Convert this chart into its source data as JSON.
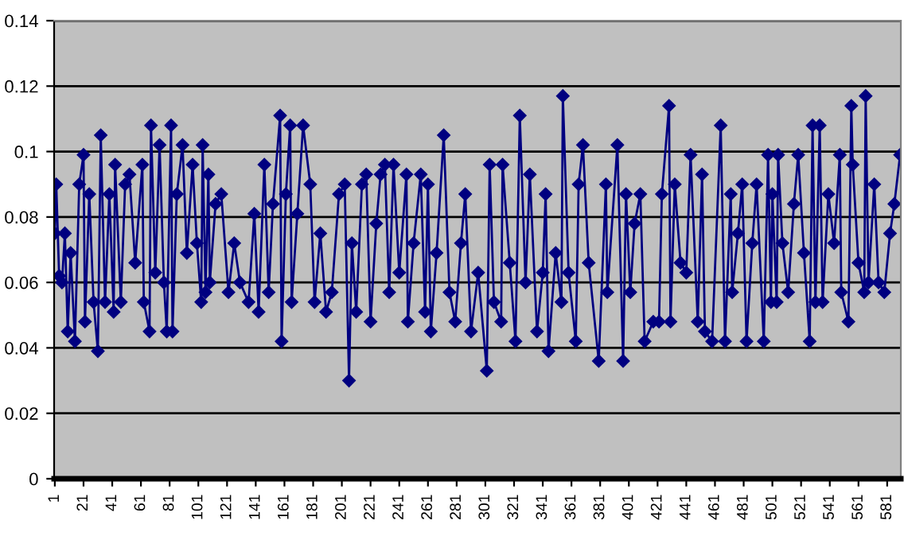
{
  "chart_data": {
    "type": "line",
    "xlim": [
      0.5,
      590.5
    ],
    "xticks": [
      1,
      21,
      41,
      61,
      81,
      101,
      121,
      141,
      161,
      181,
      201,
      221,
      241,
      261,
      281,
      301,
      321,
      341,
      361,
      381,
      401,
      421,
      441,
      461,
      481,
      501,
      521,
      541,
      561,
      581
    ],
    "ylim": [
      0,
      0.14
    ],
    "yticks": [
      0,
      0.02,
      0.04,
      0.06,
      0.08,
      0.1,
      0.12,
      0.14
    ],
    "grid": "y",
    "marker": "diamond",
    "line_style": "solid",
    "series": [
      {
        "color": "#000080",
        "x": [
          1,
          2,
          4,
          6,
          8,
          10,
          12,
          15,
          18,
          21,
          22,
          25,
          28,
          31,
          33,
          36,
          39,
          42,
          43,
          47,
          50,
          53,
          57,
          62,
          63,
          67,
          68,
          71,
          74,
          77,
          79,
          82,
          83,
          86,
          90,
          93,
          97,
          100,
          103,
          104,
          106,
          108,
          109,
          113,
          117,
          122,
          126,
          130,
          136,
          140,
          143,
          147,
          150,
          153,
          158,
          159,
          162,
          165,
          166,
          170,
          174,
          179,
          182,
          186,
          190,
          194,
          199,
          203,
          206,
          208,
          211,
          215,
          218,
          221,
          225,
          228,
          231,
          234,
          237,
          241,
          246,
          247,
          251,
          256,
          259,
          261,
          263,
          267,
          272,
          276,
          280,
          284,
          287,
          291,
          296,
          302,
          304,
          307,
          312,
          313,
          318,
          322,
          325,
          329,
          332,
          337,
          341,
          343,
          345,
          350,
          354,
          355,
          359,
          364,
          366,
          369,
          373,
          380,
          385,
          386,
          393,
          397,
          399,
          402,
          405,
          409,
          412,
          418,
          422,
          424,
          429,
          430,
          433,
          437,
          441,
          444,
          449,
          452,
          454,
          459,
          465,
          468,
          472,
          473,
          477,
          480,
          483,
          487,
          490,
          495,
          498,
          500,
          501,
          504,
          505,
          508,
          512,
          516,
          519,
          523,
          527,
          529,
          531,
          534,
          536,
          540,
          544,
          548,
          549,
          554,
          556,
          557,
          561,
          565,
          566,
          568,
          572,
          575,
          579,
          583,
          586,
          590
        ],
        "values": [
          0.075,
          0.09,
          0.062,
          0.06,
          0.075,
          0.045,
          0.069,
          0.042,
          0.09,
          0.099,
          0.048,
          0.087,
          0.054,
          0.039,
          0.105,
          0.054,
          0.087,
          0.051,
          0.096,
          0.054,
          0.09,
          0.093,
          0.066,
          0.096,
          0.054,
          0.045,
          0.108,
          0.063,
          0.102,
          0.06,
          0.045,
          0.108,
          0.045,
          0.087,
          0.102,
          0.069,
          0.096,
          0.072,
          0.054,
          0.102,
          0.057,
          0.093,
          0.06,
          0.084,
          0.087,
          0.057,
          0.072,
          0.06,
          0.054,
          0.081,
          0.051,
          0.096,
          0.057,
          0.084,
          0.111,
          0.042,
          0.087,
          0.108,
          0.054,
          0.081,
          0.108,
          0.09,
          0.054,
          0.075,
          0.051,
          0.057,
          0.087,
          0.09,
          0.03,
          0.072,
          0.051,
          0.09,
          0.093,
          0.048,
          0.078,
          0.093,
          0.096,
          0.057,
          0.096,
          0.063,
          0.093,
          0.048,
          0.072,
          0.093,
          0.051,
          0.09,
          0.045,
          0.069,
          0.105,
          0.057,
          0.048,
          0.072,
          0.087,
          0.045,
          0.063,
          0.033,
          0.096,
          0.054,
          0.048,
          0.096,
          0.066,
          0.042,
          0.111,
          0.06,
          0.093,
          0.045,
          0.063,
          0.087,
          0.039,
          0.069,
          0.054,
          0.117,
          0.063,
          0.042,
          0.09,
          0.102,
          0.066,
          0.036,
          0.09,
          0.057,
          0.102,
          0.036,
          0.087,
          0.057,
          0.078,
          0.087,
          0.042,
          0.048,
          0.048,
          0.087,
          0.114,
          0.048,
          0.09,
          0.066,
          0.063,
          0.099,
          0.048,
          0.093,
          0.045,
          0.042,
          0.108,
          0.042,
          0.087,
          0.057,
          0.075,
          0.09,
          0.042,
          0.072,
          0.09,
          0.042,
          0.099,
          0.054,
          0.087,
          0.054,
          0.099,
          0.072,
          0.057,
          0.084,
          0.099,
          0.069,
          0.042,
          0.108,
          0.054,
          0.108,
          0.054,
          0.087,
          0.072,
          0.099,
          0.057,
          0.048,
          0.114,
          0.096,
          0.066,
          0.057,
          0.117,
          0.06,
          0.09,
          0.06,
          0.057,
          0.075,
          0.084,
          0.099
        ]
      }
    ]
  }
}
